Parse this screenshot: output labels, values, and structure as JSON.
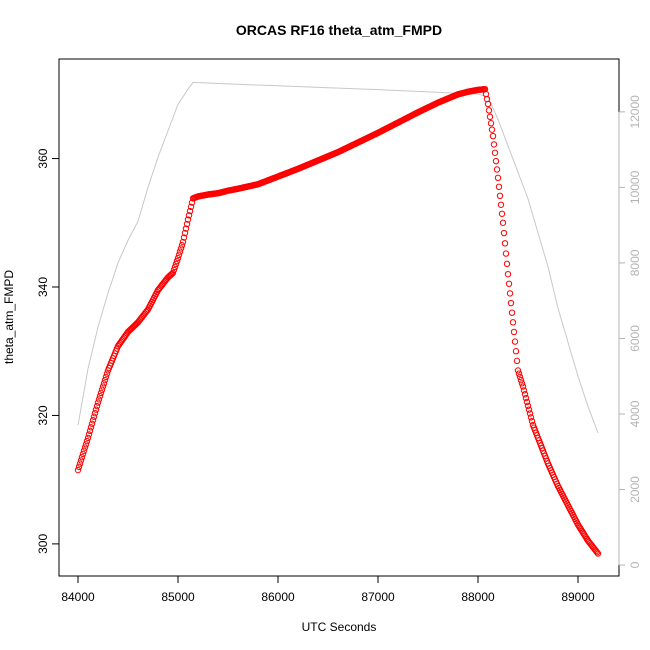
{
  "chart_data": {
    "type": "scatter",
    "title": "ORCAS RF16 theta_atm_FMPD",
    "xlabel": "UTC Seconds",
    "ylabel": "theta_atm_FMPD",
    "xlim": [
      83810,
      89410
    ],
    "ylim": [
      295.0,
      375.5
    ],
    "y2lim": [
      -290,
      13400
    ],
    "x_ticks": [
      84000,
      85000,
      86000,
      87000,
      88000,
      89000
    ],
    "y_ticks": [
      300,
      320,
      340,
      360
    ],
    "y2_ticks": [
      0,
      2000,
      4000,
      6000,
      8000,
      10000,
      12000
    ],
    "colors": {
      "points": "#ff0000",
      "altitude_line": "#c8c8c8",
      "right_axis": "#b4b4b4"
    },
    "series": [
      {
        "kind": "points",
        "marker": "open-circle",
        "axis": "left",
        "x": [
          84000,
          84100,
          84200,
          84300,
          84400,
          84500,
          84600,
          84700,
          84800,
          84900,
          84950,
          85000,
          85050,
          85100,
          85150,
          85200,
          85300,
          85400,
          85500,
          85600,
          85800,
          86000,
          86200,
          86400,
          86600,
          86800,
          87000,
          87200,
          87400,
          87600,
          87800,
          87900,
          88000,
          88070,
          88100,
          88150,
          88200,
          88250,
          88300,
          88350,
          88400,
          88450,
          88500,
          88550,
          88600,
          88700,
          88800,
          88900,
          89000,
          89100,
          89200
        ],
        "y": [
          311.5,
          316.5,
          322.0,
          327.0,
          330.8,
          333.0,
          334.5,
          336.5,
          339.5,
          341.5,
          342.2,
          344.5,
          347.0,
          350.5,
          353.8,
          354.1,
          354.4,
          354.6,
          355.0,
          355.3,
          356.0,
          357.2,
          358.4,
          359.7,
          361.0,
          362.5,
          364.0,
          365.6,
          367.2,
          368.7,
          370.0,
          370.4,
          370.7,
          370.8,
          368.5,
          363.5,
          357.0,
          350.0,
          342.0,
          334.5,
          327.0,
          324.5,
          321.5,
          318.5,
          316.5,
          312.5,
          309.0,
          306.0,
          303.0,
          300.5,
          298.5
        ]
      },
      {
        "kind": "line",
        "name": "",
        "axis": "right",
        "x": [
          84000,
          84100,
          84200,
          84300,
          84400,
          84500,
          84600,
          84700,
          84800,
          84900,
          85000,
          85100,
          85150,
          85500,
          86000,
          86500,
          87000,
          87500,
          88000,
          88100,
          88200,
          88300,
          88400,
          88500,
          88600,
          88700,
          88800,
          88900,
          89000,
          89100,
          89200
        ],
        "y": [
          3700,
          5200,
          6300,
          7200,
          8000,
          8600,
          9100,
          10000,
          10800,
          11500,
          12200,
          12600,
          12780,
          12740,
          12690,
          12640,
          12590,
          12530,
          12470,
          12400,
          11800,
          11100,
          10400,
          9700,
          8800,
          7900,
          6800,
          5900,
          5000,
          4200,
          3500
        ]
      }
    ]
  }
}
